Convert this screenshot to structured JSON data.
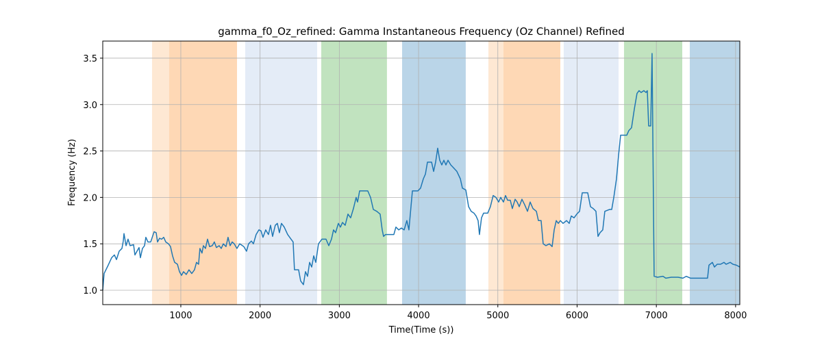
{
  "chart_data": {
    "type": "line",
    "title": "gamma_f0_Oz_refined: Gamma Instantaneous Frequency (Oz Channel) Refined",
    "xlabel": "Time(Time (s))",
    "ylabel": "Frequency (Hz)",
    "xlim": [
      15,
      8053
    ],
    "ylim": [
      0.845,
      3.684
    ],
    "xticks": [
      1000,
      2000,
      3000,
      4000,
      5000,
      6000,
      7000,
      8000
    ],
    "yticks": [
      {
        "value": 1,
        "label": "1.0"
      },
      1.5,
      {
        "value": 2,
        "label": "2.0"
      },
      2.5,
      {
        "value": 3,
        "label": "3.0"
      },
      3.5
    ],
    "grid": true,
    "color": "#1f77b4",
    "spans": [
      {
        "start": 637,
        "end": 1709,
        "color": "#fee8d3"
      },
      {
        "start": 853,
        "end": 1709,
        "color": "#fed8b5"
      },
      {
        "start": 1812,
        "end": 2720,
        "color": "#e4ecf7"
      },
      {
        "start": 2772,
        "end": 3601,
        "color": "#c1e3bf"
      },
      {
        "start": 3792,
        "end": 4595,
        "color": "#bad5e8"
      },
      {
        "start": 4881,
        "end": 5788,
        "color": "#fee8d3"
      },
      {
        "start": 5071,
        "end": 5788,
        "color": "#fed8b5"
      },
      {
        "start": 5831,
        "end": 6523,
        "color": "#e4ecf7"
      },
      {
        "start": 6592,
        "end": 7327,
        "color": "#c1e3bf"
      },
      {
        "start": 7422,
        "end": 8053,
        "color": "#bad5e8"
      }
    ],
    "x": [
      15,
      32,
      84,
      127,
      162,
      188,
      222,
      257,
      274,
      283,
      309,
      334,
      360,
      404,
      421,
      447,
      473,
      490,
      516,
      542,
      559,
      585,
      620,
      663,
      689,
      706,
      732,
      758,
      784,
      810,
      844,
      870,
      896,
      922,
      957,
      983,
      1009,
      1034,
      1069,
      1103,
      1138,
      1172,
      1198,
      1224,
      1241,
      1267,
      1285,
      1311,
      1337,
      1363,
      1397,
      1423,
      1449,
      1484,
      1510,
      1536,
      1570,
      1596,
      1622,
      1648,
      1674,
      1708,
      1743,
      1795,
      1829,
      1855,
      1890,
      1916,
      1950,
      1985,
      2011,
      2037,
      2071,
      2106,
      2132,
      2158,
      2192,
      2218,
      2244,
      2270,
      2305,
      2348,
      2391,
      2417,
      2434,
      2486,
      2512,
      2547,
      2573,
      2599,
      2625,
      2651,
      2677,
      2703,
      2737,
      2780,
      2832,
      2867,
      2901,
      2927,
      2953,
      2988,
      3014,
      3040,
      3074,
      3109,
      3143,
      3178,
      3212,
      3230,
      3256,
      3299,
      3359,
      3394,
      3429,
      3472,
      3515,
      3541,
      3558,
      3584,
      3645,
      3688,
      3714,
      3749,
      3783,
      3818,
      3852,
      3878,
      3904,
      3922,
      3991,
      4025,
      4060,
      4086,
      4112,
      4164,
      4190,
      4215,
      4241,
      4267,
      4293,
      4319,
      4345,
      4371,
      4406,
      4440,
      4483,
      4527,
      4553,
      4596,
      4631,
      4664,
      4699,
      4725,
      4751,
      4768,
      4794,
      4820,
      4872,
      4906,
      4941,
      4976,
      5010,
      5036,
      5071,
      5097,
      5123,
      5157,
      5183,
      5218,
      5244,
      5270,
      5304,
      5339,
      5374,
      5408,
      5443,
      5486,
      5512,
      5546,
      5572,
      5607,
      5650,
      5685,
      5711,
      5737,
      5763,
      5789,
      5823,
      5867,
      5901,
      5927,
      5962,
      5996,
      6031,
      6048,
      6065,
      6134,
      6169,
      6203,
      6238,
      6264,
      6290,
      6324,
      6350,
      6411,
      6437,
      6463,
      6497,
      6523,
      6549,
      6627,
      6653,
      6687,
      6722,
      6756,
      6782,
      6808,
      6843,
      6869,
      6886,
      6903,
      6929,
      6946,
      6972,
      7015,
      7084,
      7119,
      7188,
      7274,
      7335,
      7378,
      7430,
      7534,
      7646,
      7664,
      7707,
      7733,
      7768,
      7811,
      7854,
      7880,
      7932,
      7966,
      8010,
      8053
    ],
    "values": [
      1.0,
      1.18,
      1.27,
      1.35,
      1.38,
      1.33,
      1.42,
      1.45,
      1.53,
      1.61,
      1.48,
      1.55,
      1.48,
      1.49,
      1.38,
      1.42,
      1.46,
      1.35,
      1.45,
      1.48,
      1.57,
      1.52,
      1.52,
      1.63,
      1.62,
      1.52,
      1.56,
      1.55,
      1.57,
      1.52,
      1.5,
      1.47,
      1.37,
      1.3,
      1.28,
      1.2,
      1.16,
      1.2,
      1.17,
      1.22,
      1.18,
      1.22,
      1.3,
      1.28,
      1.45,
      1.4,
      1.48,
      1.45,
      1.55,
      1.47,
      1.48,
      1.52,
      1.46,
      1.48,
      1.45,
      1.5,
      1.47,
      1.57,
      1.48,
      1.52,
      1.5,
      1.45,
      1.5,
      1.47,
      1.42,
      1.5,
      1.53,
      1.5,
      1.6,
      1.65,
      1.64,
      1.57,
      1.65,
      1.6,
      1.7,
      1.58,
      1.7,
      1.72,
      1.62,
      1.72,
      1.68,
      1.6,
      1.55,
      1.52,
      1.22,
      1.22,
      1.1,
      1.06,
      1.2,
      1.15,
      1.3,
      1.25,
      1.37,
      1.3,
      1.5,
      1.55,
      1.55,
      1.48,
      1.55,
      1.65,
      1.62,
      1.72,
      1.68,
      1.73,
      1.7,
      1.82,
      1.78,
      1.88,
      2.0,
      1.95,
      2.07,
      2.07,
      2.07,
      2.0,
      1.87,
      1.85,
      1.82,
      1.65,
      1.58,
      1.6,
      1.6,
      1.6,
      1.68,
      1.65,
      1.67,
      1.65,
      1.75,
      1.65,
      1.9,
      2.07,
      2.07,
      2.1,
      2.2,
      2.25,
      2.38,
      2.38,
      2.28,
      2.38,
      2.53,
      2.4,
      2.35,
      2.4,
      2.35,
      2.4,
      2.35,
      2.32,
      2.28,
      2.2,
      2.1,
      2.08,
      1.9,
      1.85,
      1.83,
      1.8,
      1.75,
      1.6,
      1.78,
      1.83,
      1.83,
      1.9,
      2.02,
      2.0,
      1.95,
      2.0,
      1.95,
      2.02,
      1.97,
      1.97,
      1.88,
      1.98,
      1.95,
      1.9,
      1.98,
      1.92,
      1.85,
      1.95,
      1.88,
      1.85,
      1.75,
      1.75,
      1.5,
      1.48,
      1.5,
      1.47,
      1.65,
      1.75,
      1.72,
      1.75,
      1.72,
      1.75,
      1.72,
      1.8,
      1.78,
      1.82,
      1.85,
      1.95,
      2.05,
      2.05,
      1.9,
      1.88,
      1.85,
      1.58,
      1.62,
      1.65,
      1.85,
      1.87,
      1.87,
      2.0,
      2.2,
      2.45,
      2.67,
      2.67,
      2.72,
      2.75,
      2.95,
      3.12,
      3.15,
      3.13,
      3.15,
      3.13,
      3.15,
      2.77,
      2.77,
      3.55,
      1.15,
      1.14,
      1.15,
      1.13,
      1.14,
      1.14,
      1.13,
      1.15,
      1.13,
      1.13,
      1.13,
      1.27,
      1.3,
      1.25,
      1.28,
      1.28,
      1.3,
      1.28,
      1.3,
      1.28,
      1.27,
      1.25
    ]
  }
}
